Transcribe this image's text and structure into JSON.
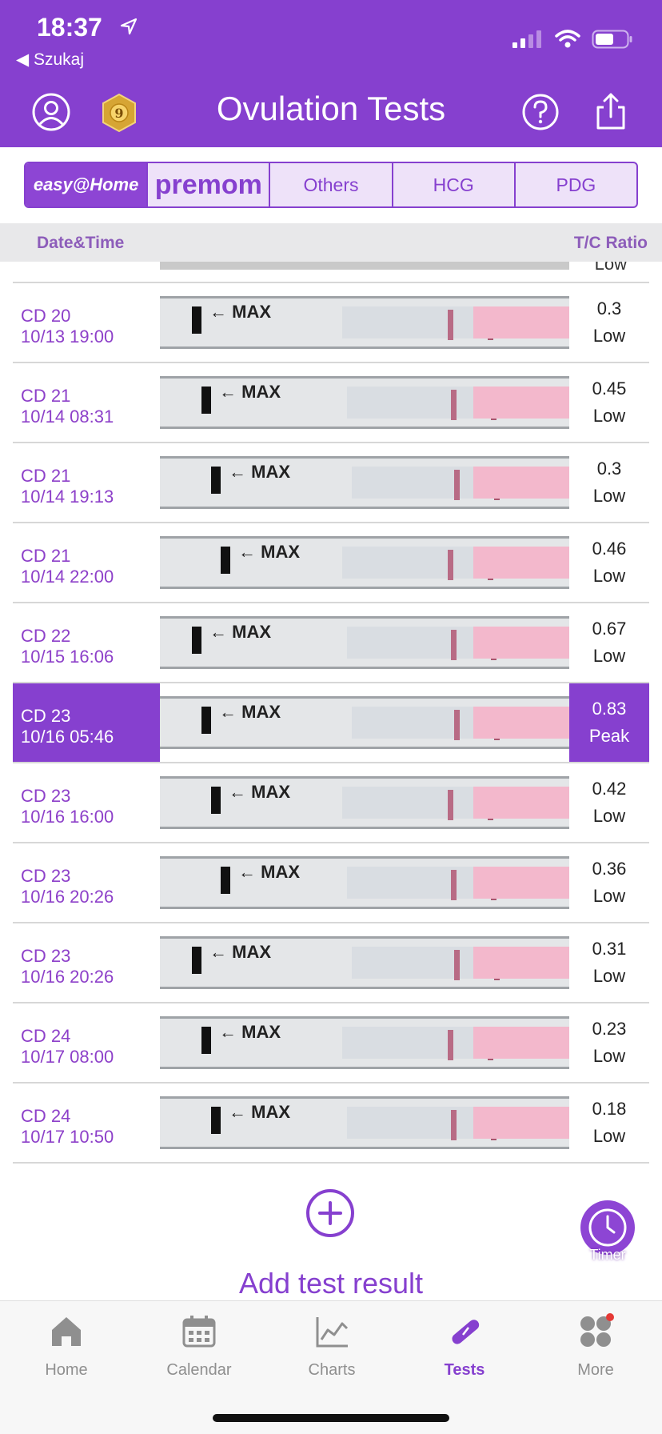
{
  "status": {
    "time": "18:37",
    "back": "◀ Szukaj"
  },
  "header": {
    "title": "Ovulation Tests",
    "badge_level": "9"
  },
  "tabs": [
    {
      "label": "easy@Home"
    },
    {
      "label": "premom"
    },
    {
      "label": "Others"
    },
    {
      "label": "HCG"
    },
    {
      "label": "PDG"
    }
  ],
  "columns": {
    "date": "Date&Time",
    "ratio": "T/C Ratio"
  },
  "partial_row": {
    "level": "Low"
  },
  "rows": [
    {
      "cd": "CD 20",
      "datetime": "10/13 19:00",
      "ratio": "0.3",
      "level": "Low",
      "strip_max": "MAX"
    },
    {
      "cd": "CD 21",
      "datetime": "10/14 08:31",
      "ratio": "0.45",
      "level": "Low",
      "strip_max": "MAX"
    },
    {
      "cd": "CD 21",
      "datetime": "10/14 19:13",
      "ratio": "0.3",
      "level": "Low",
      "strip_max": "MAX"
    },
    {
      "cd": "CD 21",
      "datetime": "10/14 22:00",
      "ratio": "0.46",
      "level": "Low",
      "strip_max": "MAX"
    },
    {
      "cd": "CD 22",
      "datetime": "10/15 16:06",
      "ratio": "0.67",
      "level": "Low",
      "strip_max": "MAX"
    },
    {
      "cd": "CD 23",
      "datetime": "10/16 05:46",
      "ratio": "0.83",
      "level": "Peak",
      "strip_max": "MAX"
    },
    {
      "cd": "CD 23",
      "datetime": "10/16 16:00",
      "ratio": "0.42",
      "level": "Low",
      "strip_max": "MAX"
    },
    {
      "cd": "CD 23",
      "datetime": "10/16 20:26",
      "ratio": "0.36",
      "level": "Low",
      "strip_max": "MAX"
    },
    {
      "cd": "CD 23",
      "datetime": "10/16 20:26",
      "ratio": "0.31",
      "level": "Low",
      "strip_max": "MAX"
    },
    {
      "cd": "CD 24",
      "datetime": "10/17 08:00",
      "ratio": "0.23",
      "level": "Low",
      "strip_max": "MAX"
    },
    {
      "cd": "CD 24",
      "datetime": "10/17 10:50",
      "ratio": "0.18",
      "level": "Low",
      "strip_max": "MAX"
    }
  ],
  "add": {
    "label": "Add test result"
  },
  "timer": {
    "label": "Timer"
  },
  "tabbar": [
    {
      "label": "Home",
      "icon": "home-icon"
    },
    {
      "label": "Calendar",
      "icon": "calendar-icon"
    },
    {
      "label": "Charts",
      "icon": "chart-icon"
    },
    {
      "label": "Tests",
      "icon": "test-strip-icon"
    },
    {
      "label": "More",
      "icon": "more-icon"
    }
  ],
  "colors": {
    "accent": "#8640cf",
    "strip_pink": "#f3b8cc"
  }
}
